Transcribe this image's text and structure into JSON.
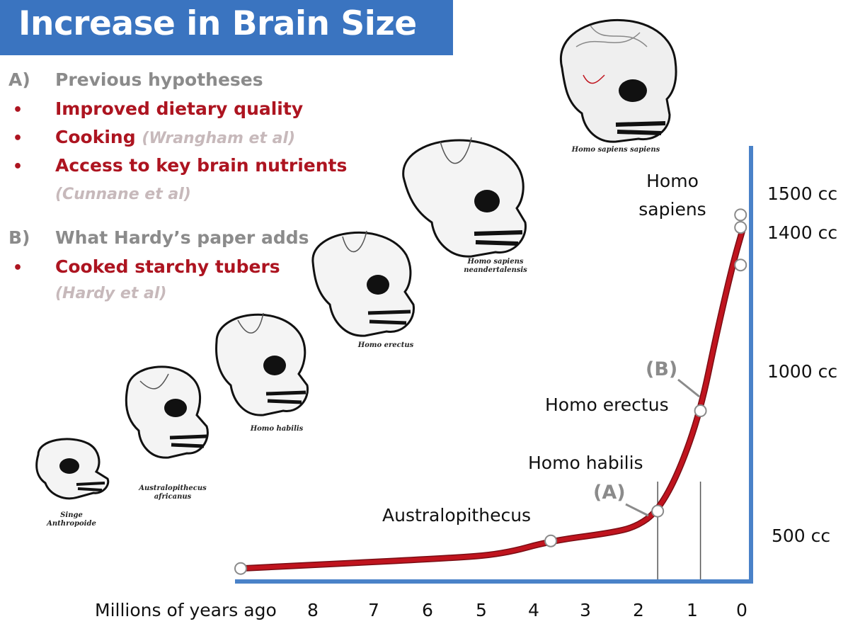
{
  "header": {
    "title": "Increase in Brain Size"
  },
  "notes": {
    "a_marker": "A)",
    "a_heading": "Previous hypotheses",
    "a_items": [
      {
        "text": "Improved dietary quality",
        "cite": ""
      },
      {
        "text": "Cooking",
        "cite": "(Wrangham et al)"
      },
      {
        "text": "Access to key brain nutrients",
        "cite": ""
      }
    ],
    "a_extra_cite": "(Cunnane et al)",
    "b_marker": "B)",
    "b_heading": "What Hardy’s paper adds",
    "b_items": [
      {
        "text": "Cooked starchy tubers",
        "cite": ""
      }
    ],
    "b_extra_cite": "(Hardy et al)",
    "bullet": "•"
  },
  "skull_captions": [
    {
      "name": "singe",
      "text": "Singe\nAnthropoide"
    },
    {
      "name": "australopithecus",
      "text": "Australopithecus\nafricanus"
    },
    {
      "name": "habilis",
      "text": "Homo habilis"
    },
    {
      "name": "erectus",
      "text": "Homo erectus"
    },
    {
      "name": "neanderthal",
      "text": "Homo sapiens\nneandertalensis"
    },
    {
      "name": "sapiens",
      "text": "Homo sapiens sapiens"
    }
  ],
  "chart_data": {
    "type": "line",
    "xlabel": "Millions of years ago",
    "ylabel": "",
    "x_ticks": [
      "8",
      "7",
      "6",
      "5",
      "4",
      "3",
      "2",
      "1",
      "0"
    ],
    "x_reversed": true,
    "xlim": [
      9.4,
      0
    ],
    "y_ticks": [
      "500 cc",
      "1000 cc",
      "1400 cc",
      "1500 cc"
    ],
    "ylim": [
      420,
      1780
    ],
    "series": [
      {
        "color": "#c0141e",
        "points": [
          {
            "x": 9.4,
            "y": 432
          },
          {
            "x": 7.5,
            "y": 448
          },
          {
            "x": 5.5,
            "y": 465
          },
          {
            "x": 4.5,
            "y": 478
          },
          {
            "x": 3.6,
            "y": 520
          },
          {
            "x": 2.5,
            "y": 545
          },
          {
            "x": 2.0,
            "y": 565
          },
          {
            "x": 1.6,
            "y": 615
          },
          {
            "x": 1.2,
            "y": 740
          },
          {
            "x": 0.8,
            "y": 935
          },
          {
            "x": 0.5,
            "y": 1180
          },
          {
            "x": 0.2,
            "y": 1400
          },
          {
            "x": 0.0,
            "y": 1520
          }
        ]
      }
    ],
    "markers": [
      {
        "x": 9.4,
        "y": 432,
        "label": "",
        "subcaption": "Singe\nAnthropoide"
      },
      {
        "x": 3.6,
        "y": 520,
        "label": "Australopithecus"
      },
      {
        "x": 1.6,
        "y": 615,
        "label": "Homo habilis",
        "tag": "(A)"
      },
      {
        "x": 0.8,
        "y": 935,
        "label": "Homo erectus",
        "tag": "(B)"
      },
      {
        "x": 0.05,
        "y": 1400,
        "label": ""
      },
      {
        "x": 0.05,
        "y": 1520,
        "label": "Homo\nsapiens"
      },
      {
        "x": 0.05,
        "y": 1560,
        "label": ""
      }
    ],
    "guide_lines": [
      {
        "x": 1.6
      },
      {
        "x": 0.8
      }
    ],
    "grid": false,
    "legend": "none"
  },
  "colors": {
    "title_bg": "#3a74c0",
    "axis": "#4a82c8",
    "curve": "#c0141e",
    "red_text": "#ad1420",
    "gray_text": "#8b8b8b",
    "cite_text": "#c7b9bb"
  }
}
